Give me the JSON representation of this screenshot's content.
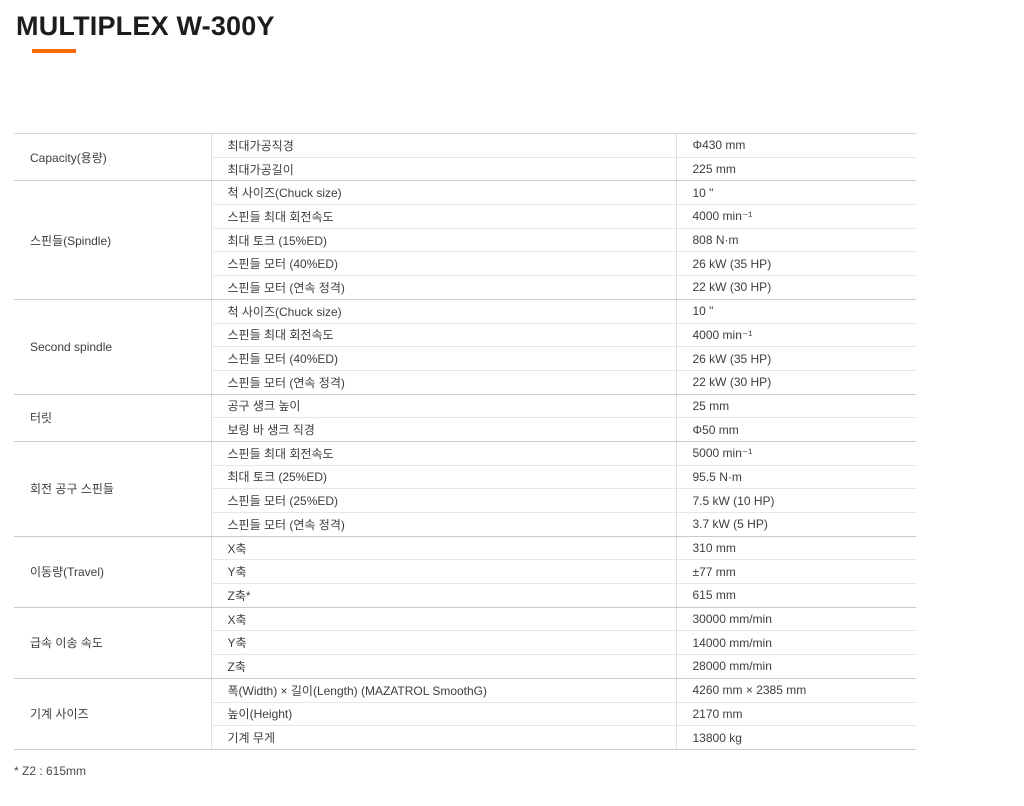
{
  "page": {
    "title": "MULTIPLEX W-300Y",
    "accent_color": "#ff6a00",
    "footnote": "* Z2 : 615mm"
  },
  "spec_table": {
    "sections": [
      {
        "category": "Capacity(용량)",
        "rows": [
          {
            "label": "최대가공직경",
            "value": "Φ430 mm"
          },
          {
            "label": "최대가공길이",
            "value": "225 mm"
          }
        ]
      },
      {
        "category": "스핀들(Spindle)",
        "rows": [
          {
            "label": "척 사이즈(Chuck size)",
            "value": "10 \""
          },
          {
            "label": "스핀들 최대 회전속도",
            "value": "4000 min⁻¹"
          },
          {
            "label": "최대 토크 (15%ED)",
            "value": "808 N·m"
          },
          {
            "label": "스핀들 모터 (40%ED)",
            "value": "26 kW (35 HP)"
          },
          {
            "label": "스핀들 모터 (연속 정격)",
            "value": "22 kW (30 HP)"
          }
        ]
      },
      {
        "category": "Second spindle",
        "rows": [
          {
            "label": "척 사이즈(Chuck size)",
            "value": "10 \""
          },
          {
            "label": "스핀들 최대 회전속도",
            "value": "4000 min⁻¹"
          },
          {
            "label": "스핀들 모터 (40%ED)",
            "value": "26 kW (35 HP)"
          },
          {
            "label": "스핀들 모터 (연속 정격)",
            "value": "22 kW (30 HP)"
          }
        ]
      },
      {
        "category": "터릿",
        "rows": [
          {
            "label": "공구 생크 높이",
            "value": "25 mm"
          },
          {
            "label": "보링 바 생크 직경",
            "value": "Φ50 mm"
          }
        ]
      },
      {
        "category": "회전 공구 스핀들",
        "rows": [
          {
            "label": "스핀들 최대 회전속도",
            "value": "5000 min⁻¹"
          },
          {
            "label": "최대 토크 (25%ED)",
            "value": "95.5 N·m"
          },
          {
            "label": "스핀들 모터 (25%ED)",
            "value": "7.5 kW (10 HP)"
          },
          {
            "label": "스핀들 모터 (연속 정격)",
            "value": "3.7 kW (5 HP)"
          }
        ]
      },
      {
        "category": "이동량(Travel)",
        "rows": [
          {
            "label": "X축",
            "value": "310 mm"
          },
          {
            "label": "Y축",
            "value": "±77 mm"
          },
          {
            "label": "Z축*",
            "value": "615 mm"
          }
        ]
      },
      {
        "category": "급속 이송 속도",
        "rows": [
          {
            "label": "X축",
            "value": "30000 mm/min"
          },
          {
            "label": "Y축",
            "value": "14000 mm/min"
          },
          {
            "label": "Z축",
            "value": "28000 mm/min"
          }
        ]
      },
      {
        "category": "기계 사이즈",
        "rows": [
          {
            "label": "폭(Width) × 길이(Length) (MAZATROL SmoothG)",
            "value": "4260 mm × 2385 mm"
          },
          {
            "label": "높이(Height)",
            "value": "2170 mm"
          },
          {
            "label": "기계 무게",
            "value": "13800 kg"
          }
        ]
      }
    ]
  }
}
